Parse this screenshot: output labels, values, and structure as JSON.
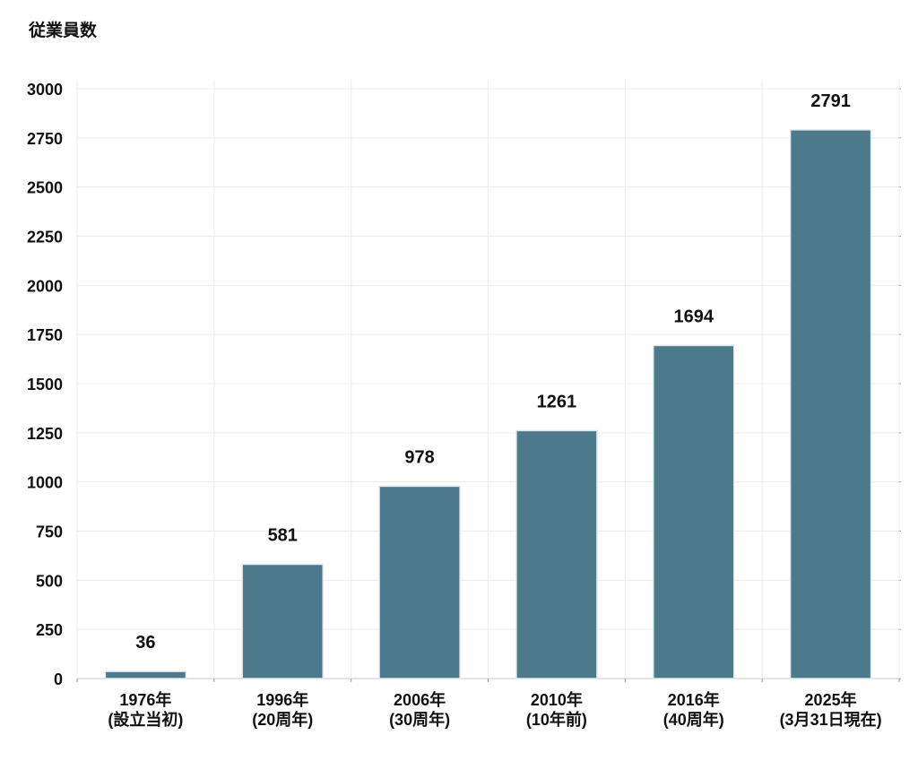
{
  "chart_data": {
    "type": "bar",
    "ylabel": "従業員数",
    "categories": [
      [
        "1976年",
        "(設立当初)"
      ],
      [
        "1996年",
        "(20周年)"
      ],
      [
        "2006年",
        "(30周年)"
      ],
      [
        "2010年",
        "(10年前)"
      ],
      [
        "2016年",
        "(40周年)"
      ],
      [
        "2025年",
        "(3月31日現在)"
      ]
    ],
    "values": [
      36,
      581,
      978,
      1261,
      1694,
      2791
    ],
    "data_labels": [
      "36",
      "581",
      "978",
      "1261",
      "1694",
      "2791"
    ],
    "yticks": [
      0,
      250,
      500,
      750,
      1000,
      1250,
      1500,
      1750,
      2000,
      2250,
      2500,
      2750,
      3000
    ],
    "ylim": [
      0,
      3000
    ],
    "grid": true,
    "bar_color": "#4b7a8c"
  }
}
